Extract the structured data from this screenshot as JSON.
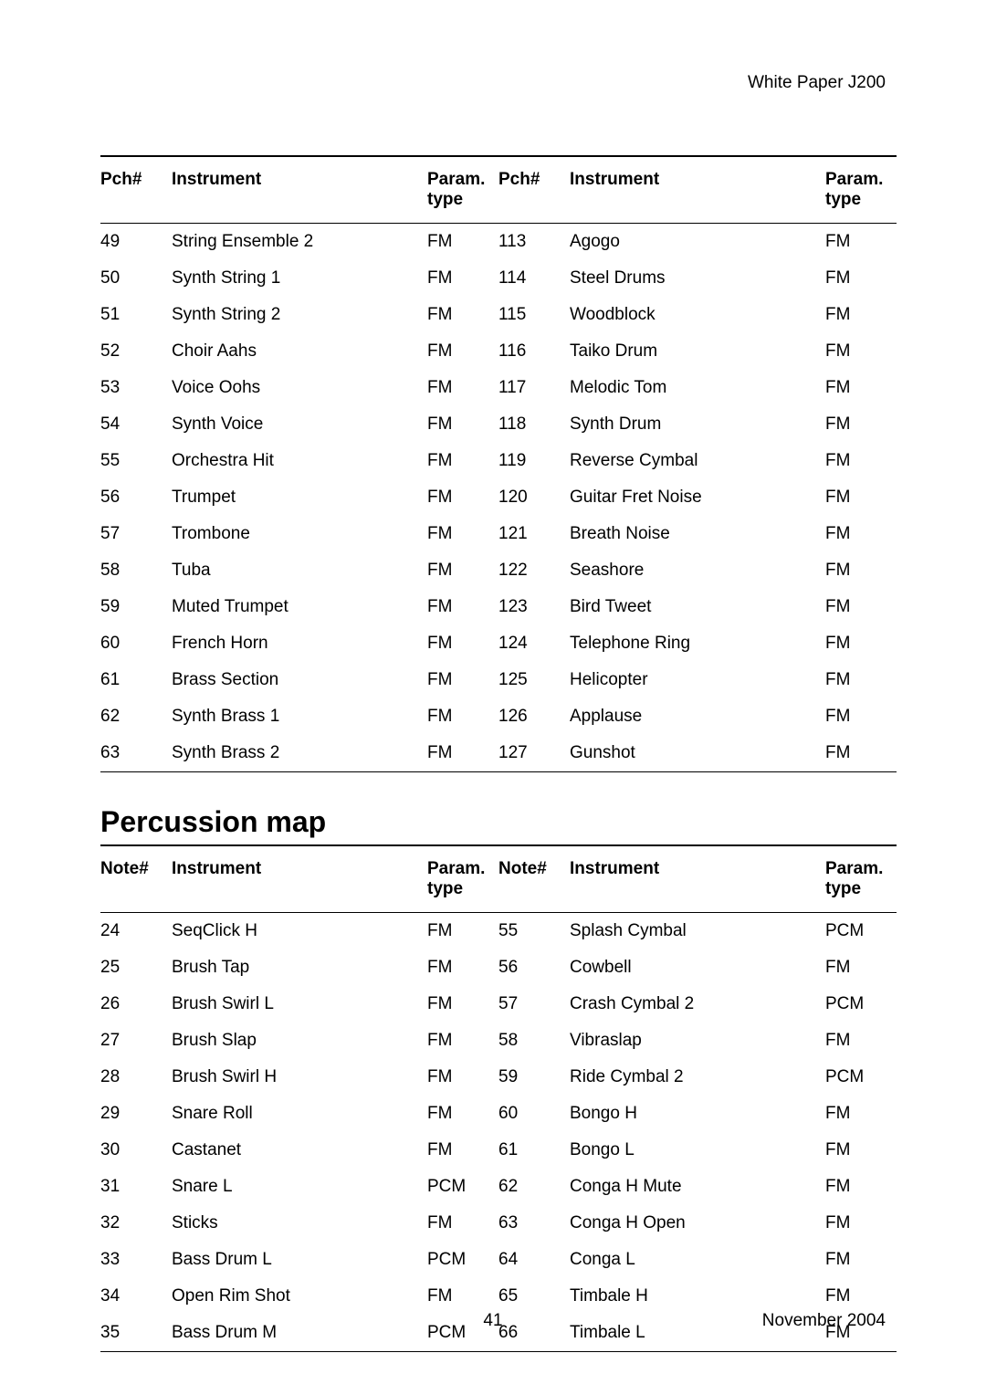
{
  "header": {
    "left": "White Paper",
    "model": "J200"
  },
  "table1": {
    "headers": {
      "num": "Pch#",
      "name": "Instrument",
      "param_l1": "Param.",
      "param_l2": "type"
    },
    "left": [
      {
        "n": "49",
        "name": "String Ensemble 2",
        "p": "FM"
      },
      {
        "n": "50",
        "name": "Synth String 1",
        "p": "FM"
      },
      {
        "n": "51",
        "name": "Synth String 2",
        "p": "FM"
      },
      {
        "n": "52",
        "name": "Choir Aahs",
        "p": "FM"
      },
      {
        "n": "53",
        "name": "Voice Oohs",
        "p": "FM"
      },
      {
        "n": "54",
        "name": "Synth Voice",
        "p": "FM"
      },
      {
        "n": "55",
        "name": "Orchestra Hit",
        "p": "FM"
      },
      {
        "n": "56",
        "name": "Trumpet",
        "p": "FM"
      },
      {
        "n": "57",
        "name": "Trombone",
        "p": "FM"
      },
      {
        "n": "58",
        "name": "Tuba",
        "p": "FM"
      },
      {
        "n": "59",
        "name": "Muted Trumpet",
        "p": "FM"
      },
      {
        "n": "60",
        "name": "French Horn",
        "p": "FM"
      },
      {
        "n": "61",
        "name": "Brass Section",
        "p": "FM"
      },
      {
        "n": "62",
        "name": "Synth Brass 1",
        "p": "FM"
      },
      {
        "n": "63",
        "name": "Synth Brass 2",
        "p": "FM"
      }
    ],
    "right": [
      {
        "n": "113",
        "name": "Agogo",
        "p": "FM"
      },
      {
        "n": "114",
        "name": "Steel Drums",
        "p": "FM"
      },
      {
        "n": "115",
        "name": "Woodblock",
        "p": "FM"
      },
      {
        "n": "116",
        "name": "Taiko Drum",
        "p": "FM"
      },
      {
        "n": "117",
        "name": "Melodic Tom",
        "p": "FM"
      },
      {
        "n": "118",
        "name": "Synth Drum",
        "p": "FM"
      },
      {
        "n": "119",
        "name": "Reverse Cymbal",
        "p": "FM"
      },
      {
        "n": "120",
        "name": "Guitar Fret Noise",
        "p": "FM"
      },
      {
        "n": "121",
        "name": "Breath Noise",
        "p": "FM"
      },
      {
        "n": "122",
        "name": "Seashore",
        "p": "FM"
      },
      {
        "n": "123",
        "name": "Bird Tweet",
        "p": "FM"
      },
      {
        "n": "124",
        "name": "Telephone Ring",
        "p": "FM"
      },
      {
        "n": "125",
        "name": "Helicopter",
        "p": "FM"
      },
      {
        "n": "126",
        "name": "Applause",
        "p": "FM"
      },
      {
        "n": "127",
        "name": "Gunshot",
        "p": "FM"
      }
    ]
  },
  "section2_title": "Percussion map",
  "table2": {
    "headers": {
      "num": "Note#",
      "name": "Instrument",
      "param_l1": "Param.",
      "param_l2": "type"
    },
    "left": [
      {
        "n": "24",
        "name": "SeqClick H",
        "p": "FM"
      },
      {
        "n": "25",
        "name": "Brush Tap",
        "p": "FM"
      },
      {
        "n": "26",
        "name": "Brush Swirl L",
        "p": "FM"
      },
      {
        "n": "27",
        "name": "Brush Slap",
        "p": "FM"
      },
      {
        "n": "28",
        "name": "Brush Swirl H",
        "p": "FM"
      },
      {
        "n": "29",
        "name": "Snare Roll",
        "p": "FM"
      },
      {
        "n": "30",
        "name": "Castanet",
        "p": "FM"
      },
      {
        "n": "31",
        "name": "Snare L",
        "p": "PCM"
      },
      {
        "n": "32",
        "name": "Sticks",
        "p": "FM"
      },
      {
        "n": "33",
        "name": "Bass Drum L",
        "p": "PCM"
      },
      {
        "n": "34",
        "name": "Open Rim Shot",
        "p": "FM"
      },
      {
        "n": "35",
        "name": "Bass Drum M",
        "p": "PCM"
      }
    ],
    "right": [
      {
        "n": "55",
        "name": "Splash Cymbal",
        "p": "PCM"
      },
      {
        "n": "56",
        "name": "Cowbell",
        "p": "FM"
      },
      {
        "n": "57",
        "name": "Crash Cymbal 2",
        "p": "PCM"
      },
      {
        "n": "58",
        "name": "Vibraslap",
        "p": "FM"
      },
      {
        "n": "59",
        "name": "Ride Cymbal 2",
        "p": "PCM"
      },
      {
        "n": "60",
        "name": "Bongo H",
        "p": "FM"
      },
      {
        "n": "61",
        "name": "Bongo L",
        "p": "FM"
      },
      {
        "n": "62",
        "name": "Conga H Mute",
        "p": "FM"
      },
      {
        "n": "63",
        "name": "Conga H Open",
        "p": "FM"
      },
      {
        "n": "64",
        "name": "Conga L",
        "p": "FM"
      },
      {
        "n": "65",
        "name": "Timbale H",
        "p": "FM"
      },
      {
        "n": "66",
        "name": "Timbale L",
        "p": "FM"
      }
    ]
  },
  "footer": {
    "page": "41",
    "date": "November 2004"
  }
}
